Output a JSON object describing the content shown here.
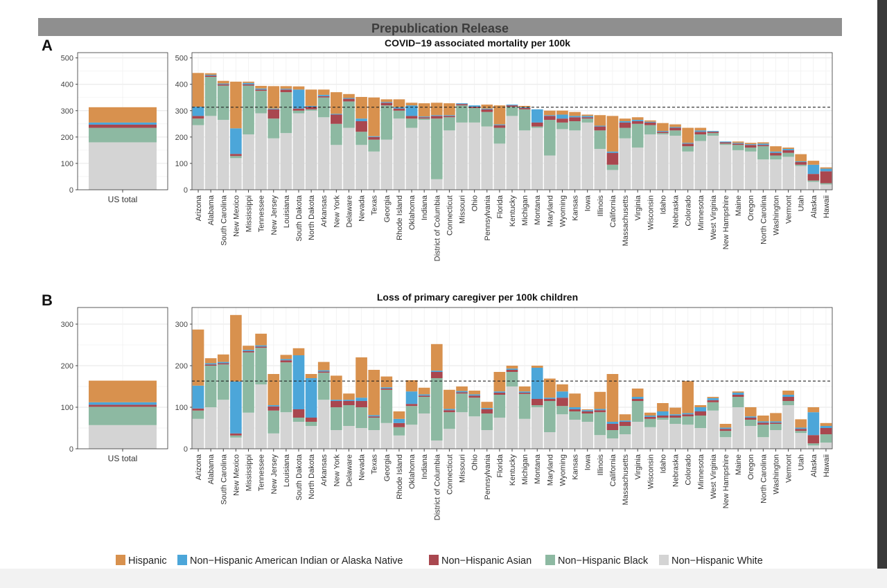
{
  "banner": "Prepublication Release",
  "panel_labels": [
    "A",
    "B"
  ],
  "colors": {
    "Hispanic": "#d8914e",
    "Non-Hispanic American Indian or Alaska Native": "#4ca6d9",
    "Non-Hispanic Asian": "#a9474f",
    "Non-Hispanic Black": "#8db9a2",
    "Non-Hispanic White": "#d4d4d4"
  },
  "chart_data": [
    {
      "type": "bar",
      "stacked": true,
      "title": "COVID−19 associated mortality per 100k",
      "us_label": "US total",
      "ylim": [
        0,
        520
      ],
      "yticks": [
        0,
        100,
        200,
        300,
        400,
        500
      ],
      "reference_line": 313,
      "series_order": [
        "Non-Hispanic White",
        "Non-Hispanic Black",
        "Non-Hispanic Asian",
        "Non-Hispanic American Indian or Alaska Native",
        "Hispanic"
      ],
      "us_total": [
        180,
        55,
        12,
        8,
        58
      ],
      "categories": [
        "Arizona",
        "Alabama",
        "South Carolina",
        "New Mexico",
        "Mississippi",
        "Tennessee",
        "New Jersey",
        "Louisiana",
        "South Dakota",
        "North Dakota",
        "Arkansas",
        "New York",
        "Delaware",
        "Nevada",
        "Texas",
        "Georgia",
        "Rhode Island",
        "Oklahoma",
        "Indiana",
        "District of Columbia",
        "Connecticut",
        "Missouri",
        "Ohio",
        "Pennsylvania",
        "Florida",
        "Kentucky",
        "Michigan",
        "Montana",
        "Maryland",
        "Wyoming",
        "Kansas",
        "Iowa",
        "Illinois",
        "California",
        "Massachusetts",
        "Virginia",
        "Wisconsin",
        "Idaho",
        "Nebraska",
        "Colorado",
        "Minnesota",
        "West Virginia",
        "New Hampshire",
        "Maine",
        "Oregon",
        "North Carolina",
        "Washington",
        "Vermont",
        "Utah",
        "Alaska",
        "Hawaii"
      ],
      "values": [
        [
          245,
          25,
          10,
          35,
          128
        ],
        [
          280,
          148,
          5,
          3,
          6
        ],
        [
          265,
          130,
          5,
          3,
          10
        ],
        [
          120,
          8,
          8,
          97,
          177
        ],
        [
          210,
          185,
          5,
          5,
          5
        ],
        [
          290,
          85,
          5,
          4,
          10
        ],
        [
          195,
          75,
          35,
          3,
          85
        ],
        [
          215,
          155,
          10,
          3,
          10
        ],
        [
          290,
          10,
          8,
          72,
          12
        ],
        [
          300,
          5,
          10,
          3,
          62
        ],
        [
          275,
          75,
          5,
          5,
          20
        ],
        [
          170,
          80,
          35,
          3,
          82
        ],
        [
          235,
          100,
          10,
          3,
          15
        ],
        [
          170,
          50,
          40,
          10,
          82
        ],
        [
          145,
          45,
          10,
          3,
          147
        ],
        [
          190,
          130,
          10,
          3,
          10
        ],
        [
          270,
          30,
          8,
          5,
          30
        ],
        [
          235,
          35,
          10,
          40,
          10
        ],
        [
          265,
          5,
          5,
          3,
          50
        ],
        [
          40,
          230,
          10,
          3,
          47
        ],
        [
          225,
          50,
          5,
          3,
          45
        ],
        [
          255,
          65,
          5,
          3,
          0
        ],
        [
          255,
          55,
          5,
          5,
          0
        ],
        [
          240,
          55,
          10,
          3,
          15
        ],
        [
          175,
          60,
          10,
          3,
          72
        ],
        [
          280,
          35,
          5,
          3,
          0
        ],
        [
          225,
          80,
          5,
          3,
          5
        ],
        [
          235,
          5,
          15,
          50,
          0
        ],
        [
          130,
          135,
          15,
          3,
          17
        ],
        [
          230,
          25,
          15,
          15,
          15
        ],
        [
          225,
          35,
          15,
          5,
          15
        ],
        [
          255,
          15,
          5,
          5,
          5
        ],
        [
          155,
          70,
          15,
          3,
          40
        ],
        [
          75,
          20,
          45,
          5,
          135
        ],
        [
          195,
          40,
          20,
          5,
          10
        ],
        [
          160,
          90,
          10,
          5,
          10
        ],
        [
          210,
          35,
          10,
          3,
          5
        ],
        [
          210,
          5,
          5,
          3,
          30
        ],
        [
          205,
          20,
          10,
          3,
          10
        ],
        [
          145,
          20,
          10,
          3,
          57
        ],
        [
          185,
          25,
          10,
          5,
          10
        ],
        [
          205,
          10,
          5,
          3,
          0
        ],
        [
          170,
          5,
          5,
          3,
          0
        ],
        [
          150,
          20,
          5,
          3,
          5
        ],
        [
          145,
          15,
          10,
          3,
          5
        ],
        [
          115,
          50,
          5,
          5,
          5
        ],
        [
          115,
          15,
          10,
          5,
          20
        ],
        [
          125,
          15,
          10,
          5,
          5
        ],
        [
          90,
          5,
          10,
          3,
          27
        ],
        [
          30,
          5,
          25,
          35,
          15
        ],
        [
          20,
          5,
          45,
          10,
          5
        ]
      ]
    },
    {
      "type": "bar",
      "stacked": true,
      "title": "Loss of primary caregiver per 100k children",
      "us_label": "US total",
      "ylim": [
        0,
        340
      ],
      "yticks": [
        0,
        100,
        200,
        300
      ],
      "reference_line": 163,
      "series_order": [
        "Non-Hispanic White",
        "Non-Hispanic Black",
        "Non-Hispanic Asian",
        "Non-Hispanic American Indian or Alaska Native",
        "Hispanic"
      ],
      "us_total": [
        57,
        44,
        5,
        6,
        52
      ],
      "categories": [
        "Arizona",
        "Alabama",
        "South Carolina",
        "New Mexico",
        "Mississippi",
        "Tennessee",
        "New Jersey",
        "Louisiana",
        "South Dakota",
        "North Dakota",
        "Arkansas",
        "New York",
        "Delaware",
        "Nevada",
        "Texas",
        "Georgia",
        "Rhode Island",
        "Oklahoma",
        "Indiana",
        "District of Columbia",
        "Connecticut",
        "Missouri",
        "Ohio",
        "Pennsylvania",
        "Florida",
        "Kentucky",
        "Michigan",
        "Montana",
        "Maryland",
        "Wyoming",
        "Kansas",
        "Iowa",
        "Illinois",
        "California",
        "Massachusetts",
        "Virginia",
        "Wisconsin",
        "Idaho",
        "Nebraska",
        "Colorado",
        "Minnesota",
        "West Virginia",
        "New Hampshire",
        "Maine",
        "Oregon",
        "North Carolina",
        "Washington",
        "Vermont",
        "Utah",
        "Alaska",
        "Hawaii"
      ],
      "values": [
        [
          72,
          20,
          5,
          55,
          135
        ],
        [
          100,
          100,
          3,
          3,
          12
        ],
        [
          118,
          85,
          3,
          3,
          18
        ],
        [
          27,
          5,
          5,
          125,
          160
        ],
        [
          87,
          145,
          3,
          3,
          10
        ],
        [
          155,
          88,
          3,
          3,
          28
        ],
        [
          37,
          55,
          10,
          3,
          75
        ],
        [
          88,
          120,
          5,
          3,
          10
        ],
        [
          65,
          10,
          20,
          130,
          17
        ],
        [
          55,
          10,
          10,
          95,
          10
        ],
        [
          118,
          65,
          3,
          3,
          20
        ],
        [
          45,
          55,
          15,
          3,
          58
        ],
        [
          55,
          50,
          10,
          3,
          15
        ],
        [
          50,
          50,
          15,
          8,
          97
        ],
        [
          45,
          30,
          3,
          3,
          109
        ],
        [
          62,
          80,
          3,
          3,
          26
        ],
        [
          32,
          20,
          10,
          10,
          18
        ],
        [
          58,
          45,
          5,
          30,
          27
        ],
        [
          85,
          40,
          3,
          3,
          16
        ],
        [
          20,
          150,
          15,
          3,
          64
        ],
        [
          48,
          40,
          5,
          3,
          46
        ],
        [
          88,
          45,
          3,
          3,
          11
        ],
        [
          78,
          45,
          5,
          3,
          9
        ],
        [
          45,
          40,
          10,
          3,
          15
        ],
        [
          75,
          55,
          5,
          3,
          47
        ],
        [
          150,
          35,
          5,
          3,
          7
        ],
        [
          72,
          60,
          3,
          3,
          12
        ],
        [
          100,
          5,
          15,
          75,
          5
        ],
        [
          40,
          75,
          5,
          3,
          46
        ],
        [
          83,
          20,
          20,
          15,
          17
        ],
        [
          70,
          20,
          5,
          5,
          33
        ],
        [
          65,
          20,
          5,
          3,
          2
        ],
        [
          33,
          55,
          5,
          3,
          41
        ],
        [
          25,
          20,
          15,
          5,
          115
        ],
        [
          35,
          20,
          10,
          3,
          15
        ],
        [
          65,
          50,
          5,
          5,
          20
        ],
        [
          52,
          20,
          5,
          3,
          7
        ],
        [
          70,
          5,
          5,
          10,
          20
        ],
        [
          60,
          15,
          5,
          3,
          16
        ],
        [
          58,
          20,
          5,
          3,
          77
        ],
        [
          50,
          30,
          10,
          10,
          5
        ],
        [
          92,
          20,
          5,
          5,
          3
        ],
        [
          28,
          15,
          5,
          3,
          9
        ],
        [
          100,
          25,
          5,
          5,
          3
        ],
        [
          55,
          15,
          5,
          3,
          22
        ],
        [
          28,
          30,
          5,
          3,
          14
        ],
        [
          45,
          15,
          3,
          3,
          20
        ],
        [
          105,
          10,
          10,
          5,
          10
        ],
        [
          38,
          5,
          5,
          3,
          20
        ],
        [
          8,
          5,
          20,
          55,
          12
        ],
        [
          15,
          20,
          15,
          5,
          7
        ]
      ]
    }
  ],
  "legend": [
    "Hispanic",
    "Non−Hispanic American Indian or Alaska Native",
    "Non−Hispanic Asian",
    "Non−Hispanic Black",
    "Non−Hispanic White"
  ]
}
